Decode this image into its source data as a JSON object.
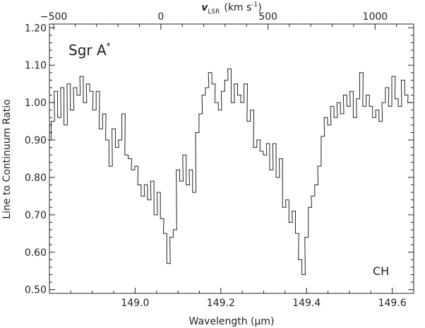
{
  "chart_data": {
    "type": "line",
    "style": "step",
    "xlabel": "Wavelength (μm)",
    "ylabel": "Line to Continuum Ratio",
    "top_axis": {
      "label_var": "v",
      "label_sub": "LSR",
      "label_unit_pre": "(km s",
      "label_unit_sup": "-1",
      "label_unit_post": ")",
      "ticks": [
        -500,
        0,
        500,
        1000
      ],
      "tick_labels": [
        "−500",
        "0",
        "500",
        "1000"
      ],
      "mapping": {
        "v": [
          0,
          500
        ],
        "wavelength": [
          149.06,
          149.31
        ]
      }
    },
    "xlim": [
      148.8,
      149.65
    ],
    "ylim": [
      0.49,
      1.21
    ],
    "xticks": [
      149.0,
      149.2,
      149.4,
      149.6
    ],
    "xtick_labels": [
      "149.0",
      "149.2",
      "149.4",
      "149.6"
    ],
    "yticks": [
      0.5,
      0.6,
      0.7,
      0.8,
      0.9,
      1.0,
      1.1,
      1.2
    ],
    "ytick_labels": [
      "0.50",
      "0.60",
      "0.70",
      "0.80",
      "0.90",
      "1.00",
      "1.10",
      "1.20"
    ],
    "annotations": {
      "source_name": "Sgr A",
      "source_sup": "*",
      "molecule": "CH"
    },
    "grid": false,
    "series": [
      {
        "x": [
          148.8,
          148.808,
          148.815,
          148.823,
          148.83,
          148.838,
          148.845,
          148.853,
          148.86,
          148.868,
          148.875,
          148.883,
          148.89,
          148.898,
          148.905,
          148.913,
          148.92,
          148.928,
          148.935,
          148.943,
          148.95,
          148.958,
          148.965,
          148.973,
          148.98,
          148.988,
          148.995,
          149.003,
          149.01,
          149.018,
          149.025,
          149.033,
          149.04,
          149.048,
          149.055,
          149.063,
          149.07,
          149.078,
          149.085,
          149.093,
          149.1,
          149.108,
          149.115,
          149.123,
          149.13,
          149.138,
          149.145,
          149.153,
          149.16,
          149.168,
          149.175,
          149.183,
          149.19,
          149.198,
          149.205,
          149.213,
          149.22,
          149.228,
          149.235,
          149.243,
          149.25,
          149.258,
          149.265,
          149.273,
          149.28,
          149.288,
          149.295,
          149.303,
          149.31,
          149.318,
          149.325,
          149.333,
          149.34,
          149.348,
          149.355,
          149.363,
          149.37,
          149.378,
          149.385,
          149.393,
          149.4,
          149.408,
          149.415,
          149.423,
          149.43,
          149.438,
          149.445,
          149.453,
          149.46,
          149.468,
          149.475,
          149.483,
          149.49,
          149.498,
          149.505,
          149.513,
          149.52,
          149.528,
          149.535,
          149.543,
          149.55,
          149.558,
          149.565,
          149.573,
          149.58,
          149.588,
          149.595,
          149.603,
          149.61,
          149.618,
          149.625,
          149.633,
          149.64
        ],
        "y": [
          0.9,
          0.95,
          1.03,
          0.96,
          1.04,
          0.94,
          1.05,
          0.98,
          1.04,
          1.02,
          1.07,
          1.0,
          1.05,
          1.03,
          0.98,
          1.03,
          0.93,
          0.97,
          0.9,
          0.83,
          0.93,
          0.88,
          0.9,
          0.97,
          0.86,
          0.85,
          0.82,
          0.83,
          0.78,
          0.75,
          0.78,
          0.74,
          0.79,
          0.7,
          0.76,
          0.69,
          0.65,
          0.57,
          0.64,
          0.66,
          0.82,
          0.79,
          0.86,
          0.78,
          0.82,
          0.76,
          0.92,
          0.97,
          1.02,
          1.04,
          1.08,
          1.05,
          1.0,
          0.98,
          1.03,
          1.06,
          1.09,
          1.0,
          1.05,
          1.02,
          1.0,
          1.05,
          0.95,
          0.98,
          0.88,
          0.9,
          0.87,
          0.86,
          0.89,
          0.82,
          0.89,
          0.8,
          0.85,
          0.72,
          0.74,
          0.68,
          0.71,
          0.65,
          0.58,
          0.54,
          0.64,
          0.72,
          0.75,
          0.78,
          0.83,
          0.91,
          0.96,
          0.94,
          0.99,
          0.96,
          1.0,
          0.97,
          1.02,
          0.99,
          1.03,
          0.96,
          1.01,
          1.08,
          0.99,
          1.02,
          0.99,
          0.96,
          0.98,
          0.95,
          1.0,
          1.04,
          0.99,
          1.07,
          1.01,
          0.99,
          1.06,
          1.02,
          1.0
        ]
      }
    ]
  }
}
